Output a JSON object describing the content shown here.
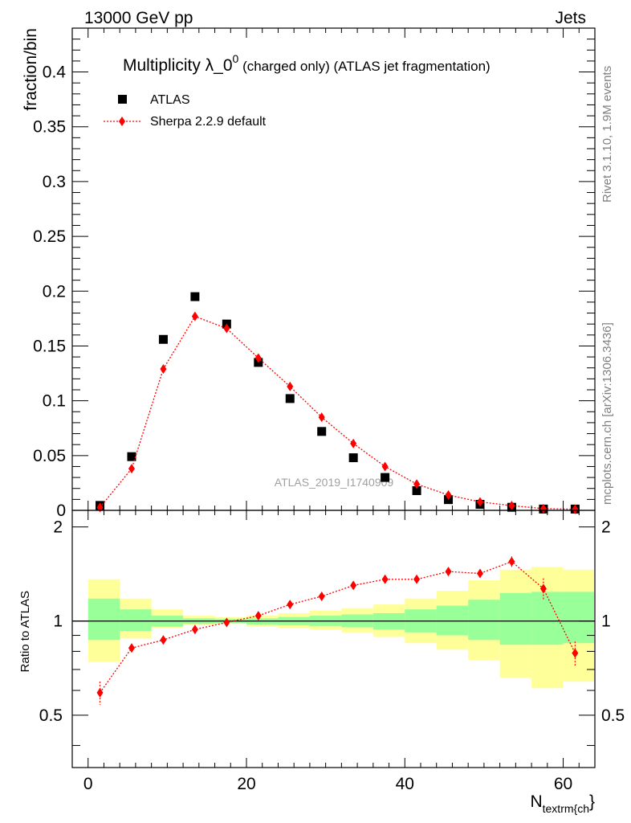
{
  "header": {
    "left": "13000 GeV pp",
    "right": "Jets"
  },
  "side": {
    "top": "Rivet 3.1.10,  1.9M events",
    "bottom": "mcplots.cern.ch [arXiv:1306.3436]"
  },
  "chart_data": {
    "type": "scatter",
    "title_main": "Multiplicity λ_0",
    "title_sup": "0",
    "title_rest": " (charged only) (ATLAS jet fragmentation)",
    "watermark": "ATLAS_2019_I1740909",
    "ylabel": "fraction/bin",
    "ratio_ylabel": "Ratio to ATLAS",
    "xlabel_main": "N",
    "xlabel_sub": "textrm{ch",
    "xlabel_end": "}",
    "xlim": [
      -2,
      64
    ],
    "ylim": [
      0,
      0.44
    ],
    "ratio_ylim": [
      0.34,
      2.26
    ],
    "x_ticks": [
      "0",
      "20",
      "40",
      "60"
    ],
    "x_tick_values": [
      0,
      20,
      40,
      60
    ],
    "y_ticks": [
      "0",
      "0.05",
      "0.1",
      "0.15",
      "0.2",
      "0.25",
      "0.3",
      "0.35",
      "0.4"
    ],
    "y_tick_values": [
      0,
      0.05,
      0.1,
      0.15,
      0.2,
      0.25,
      0.3,
      0.35,
      0.4
    ],
    "ratio_ticks": [
      "0.5",
      "1",
      "2"
    ],
    "ratio_tick_values": [
      0.5,
      1,
      2
    ],
    "x": [
      1.5,
      5.5,
      9.5,
      13.5,
      17.5,
      21.5,
      25.5,
      29.5,
      33.5,
      37.5,
      41.5,
      45.5,
      49.5,
      53.5,
      57.5,
      61.5
    ],
    "bin_edges": [
      0,
      4,
      8,
      12,
      16,
      20,
      24,
      28,
      32,
      36,
      40,
      44,
      48,
      52,
      56,
      60,
      64
    ],
    "series": [
      {
        "name": "ATLAS",
        "color": "#000000",
        "values": [
          0.0045,
          0.049,
          0.156,
          0.195,
          0.17,
          0.135,
          0.102,
          0.072,
          0.048,
          0.03,
          0.018,
          0.0098,
          0.0055,
          0.0028,
          0.0012,
          0.0012
        ]
      },
      {
        "name": "Sherpa 2.2.9 default",
        "color": "#ff0000",
        "values": [
          0.0027,
          0.038,
          0.129,
          0.177,
          0.166,
          0.139,
          0.113,
          0.085,
          0.061,
          0.04,
          0.024,
          0.014,
          0.0077,
          0.0043,
          0.0016,
          0.001
        ],
        "ratio": [
          0.59,
          0.82,
          0.87,
          0.94,
          0.99,
          1.04,
          1.13,
          1.2,
          1.3,
          1.36,
          1.36,
          1.44,
          1.42,
          1.55,
          1.27,
          0.79
        ],
        "ratio_err": [
          0.05,
          0.01,
          0.01,
          0.01,
          0.01,
          0.01,
          0.01,
          0.01,
          0.01,
          0.015,
          0.02,
          0.03,
          0.04,
          0.06,
          0.1,
          0.07
        ]
      }
    ],
    "bands": {
      "yellow_color": "#ffff99",
      "green_color": "#99ff99",
      "yellow": [
        [
          0.74,
          1.36
        ],
        [
          0.88,
          1.18
        ],
        [
          0.95,
          1.09
        ],
        [
          0.97,
          1.04
        ],
        [
          0.98,
          1.03
        ],
        [
          0.96,
          1.04
        ],
        [
          0.95,
          1.06
        ],
        [
          0.94,
          1.08
        ],
        [
          0.92,
          1.1
        ],
        [
          0.89,
          1.13
        ],
        [
          0.85,
          1.18
        ],
        [
          0.81,
          1.25
        ],
        [
          0.75,
          1.35
        ],
        [
          0.66,
          1.46
        ],
        [
          0.61,
          1.49
        ],
        [
          0.64,
          1.46
        ]
      ],
      "green": [
        [
          0.87,
          1.18
        ],
        [
          0.93,
          1.09
        ],
        [
          0.96,
          1.04
        ],
        [
          0.98,
          1.02
        ],
        [
          0.985,
          1.015
        ],
        [
          0.975,
          1.02
        ],
        [
          0.97,
          1.03
        ],
        [
          0.965,
          1.04
        ],
        [
          0.955,
          1.05
        ],
        [
          0.94,
          1.06
        ],
        [
          0.92,
          1.09
        ],
        [
          0.9,
          1.12
        ],
        [
          0.87,
          1.17
        ],
        [
          0.84,
          1.23
        ],
        [
          0.84,
          1.24
        ],
        [
          0.85,
          1.24
        ]
      ]
    }
  }
}
